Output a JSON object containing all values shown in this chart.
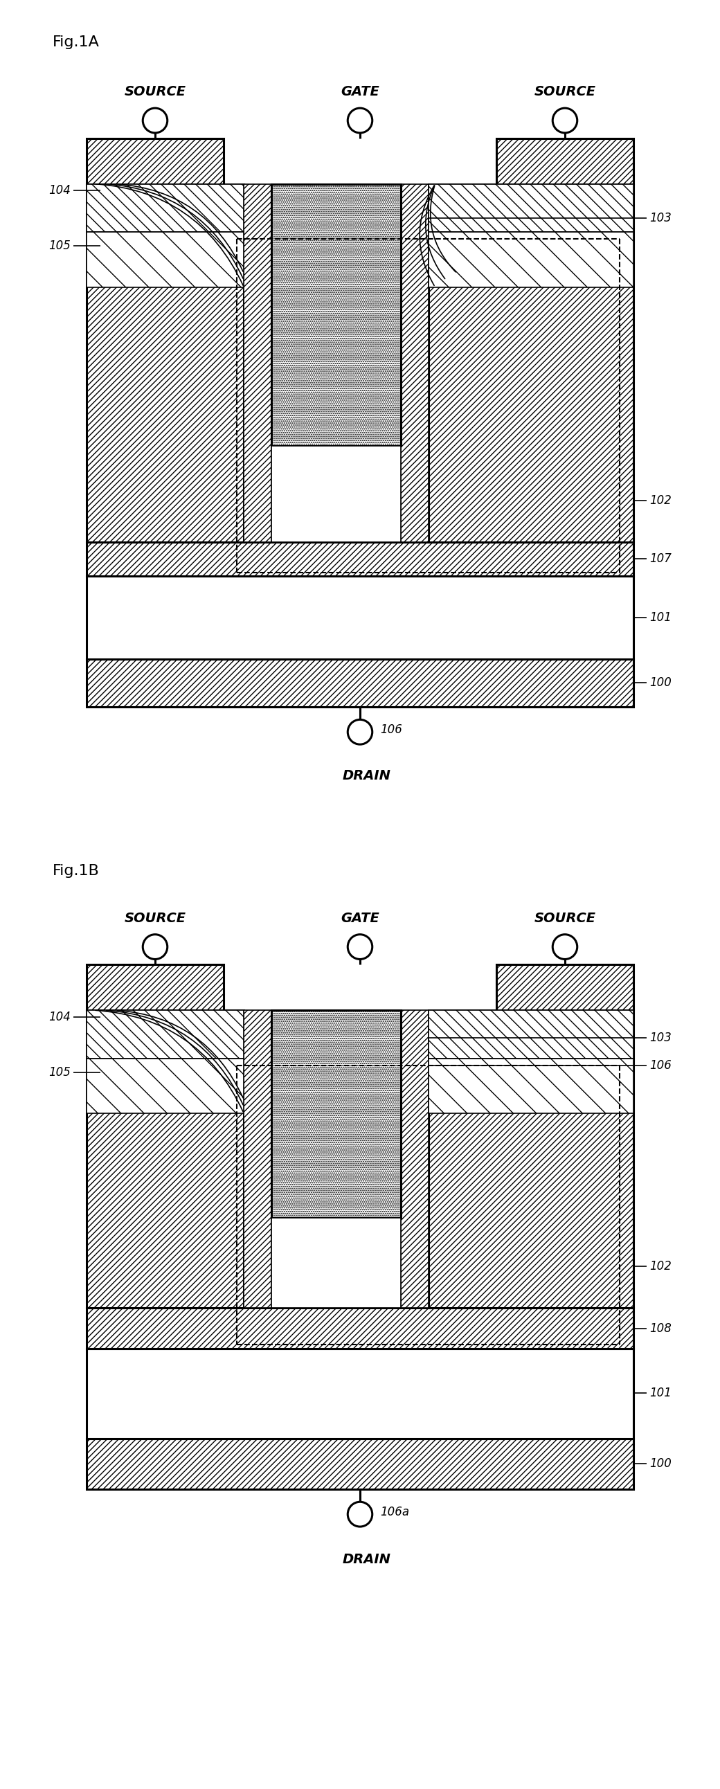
{
  "fig1a_label": "Fig.1A",
  "fig1b_label": "Fig.1B",
  "source_label": "SOURCE",
  "gate_label": "GATE",
  "drain_label": "DRAIN",
  "bg_color": "#ffffff",
  "lw_main": 2.2,
  "lw_thin": 1.2,
  "lw_dash": 1.5,
  "fs_label": 16,
  "fs_ref": 12,
  "fs_terminal": 14
}
